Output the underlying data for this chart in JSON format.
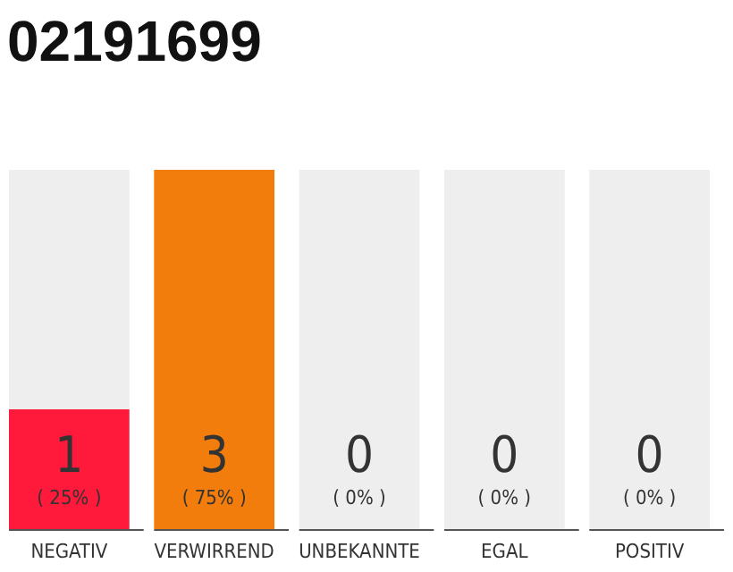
{
  "chart_data": {
    "type": "bar",
    "title": "02191699",
    "categories": [
      "NEGATIV",
      "VERWIRREND",
      "UNBEKANNTE",
      "EGAL",
      "POSITIV"
    ],
    "values": [
      1,
      3,
      0,
      0,
      0
    ],
    "colors": [
      "#ff1a3c",
      "#f27c0c",
      "#f27c0c",
      "#f27c0c",
      "#f27c0c"
    ],
    "ylim": [
      0,
      3
    ],
    "tick_labels": "x",
    "data_labels": true,
    "bands": [
      {
        "axis": "x",
        "from": "NEGATIV",
        "to": "NEGATIV",
        "color": "#eeeeee"
      },
      {
        "axis": "x",
        "from": "UNBEKANNTE",
        "to": "UNBEKANNTE",
        "color": "#eeeeee"
      },
      {
        "axis": "x",
        "from": "EGAL",
        "to": "EGAL",
        "color": "#eeeeee"
      },
      {
        "axis": "x",
        "from": "POSITIV",
        "to": "POSITIV",
        "color": "#eeeeee"
      }
    ],
    "annotations": [
      "( 25% )",
      "( 75% )",
      "( 0% )",
      "( 0% )",
      "( 0% )"
    ]
  }
}
